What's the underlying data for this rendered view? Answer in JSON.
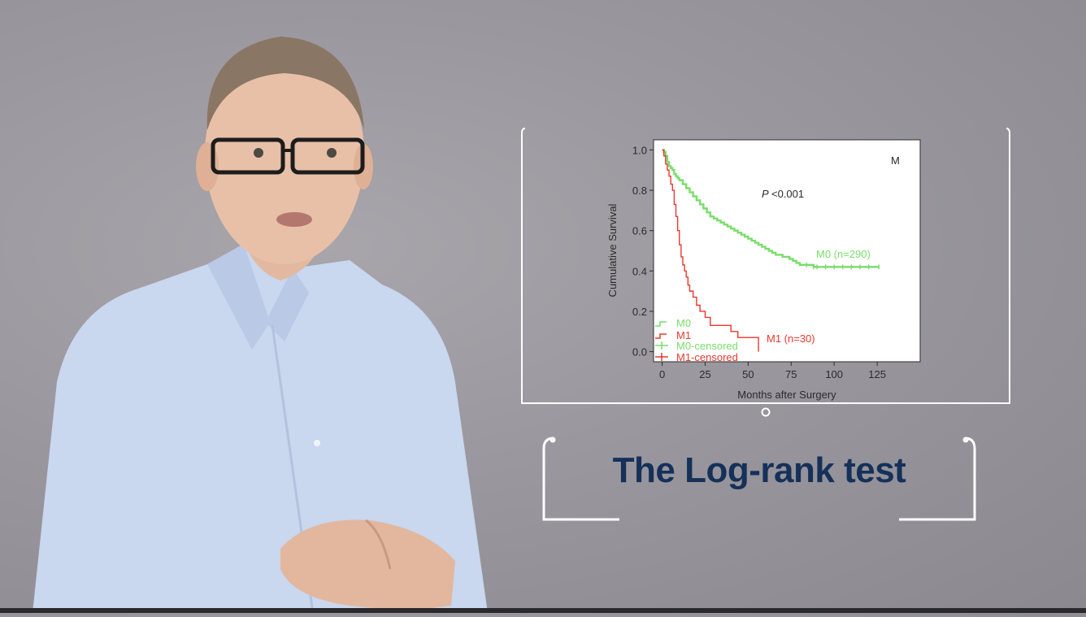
{
  "title": "The Log-rank test",
  "chart_data": {
    "type": "line",
    "panel_label": "M",
    "p_value_prefix": "P",
    "p_value_text": "<0.001",
    "xlabel": "Months after Surgery",
    "ylabel": "Cumulative Survival",
    "xlim": [
      -5,
      150
    ],
    "ylim": [
      -0.05,
      1.05
    ],
    "xticks": [
      0,
      25,
      50,
      75,
      100,
      125
    ],
    "yticks": [
      "0.0",
      "0.2",
      "0.4",
      "0.6",
      "0.8",
      "1.0"
    ],
    "legend": [
      "M0",
      "M1",
      "M0-censored",
      "M1-censored"
    ],
    "series": [
      {
        "name": "M0",
        "label": "M0 (n=290)",
        "color": "#79dd6b",
        "x": [
          0,
          1,
          2,
          3,
          4,
          5,
          6,
          7,
          8,
          9,
          10,
          12,
          14,
          16,
          18,
          20,
          22,
          24,
          26,
          28,
          30,
          32,
          34,
          36,
          38,
          40,
          42,
          44,
          46,
          48,
          50,
          52,
          54,
          56,
          58,
          60,
          62,
          64,
          66,
          68,
          70,
          72,
          74,
          76,
          78,
          80,
          84,
          88,
          90,
          95,
          100,
          105,
          110,
          115,
          120,
          126
        ],
        "values": [
          1.0,
          0.99,
          0.97,
          0.94,
          0.92,
          0.91,
          0.9,
          0.88,
          0.87,
          0.86,
          0.85,
          0.83,
          0.81,
          0.79,
          0.77,
          0.75,
          0.73,
          0.71,
          0.69,
          0.67,
          0.66,
          0.65,
          0.64,
          0.63,
          0.62,
          0.61,
          0.6,
          0.59,
          0.58,
          0.57,
          0.56,
          0.55,
          0.54,
          0.53,
          0.52,
          0.51,
          0.5,
          0.49,
          0.48,
          0.48,
          0.47,
          0.47,
          0.46,
          0.45,
          0.44,
          0.43,
          0.43,
          0.42,
          0.42,
          0.42,
          0.42,
          0.42,
          0.42,
          0.42,
          0.42,
          0.42
        ]
      },
      {
        "name": "M1",
        "label": "M1 (n=30)",
        "color": "#e8382e",
        "x": [
          0,
          1,
          2,
          3,
          4,
          5,
          6,
          7,
          8,
          9,
          10,
          11,
          12,
          13,
          14,
          15,
          16,
          18,
          20,
          22,
          25,
          28,
          30,
          35,
          40,
          42,
          44,
          50,
          56
        ],
        "values": [
          1.0,
          0.97,
          0.93,
          0.9,
          0.87,
          0.83,
          0.8,
          0.73,
          0.67,
          0.6,
          0.53,
          0.47,
          0.43,
          0.4,
          0.37,
          0.33,
          0.3,
          0.27,
          0.23,
          0.2,
          0.17,
          0.13,
          0.13,
          0.13,
          0.1,
          0.1,
          0.07,
          0.07,
          0.0
        ]
      }
    ]
  }
}
